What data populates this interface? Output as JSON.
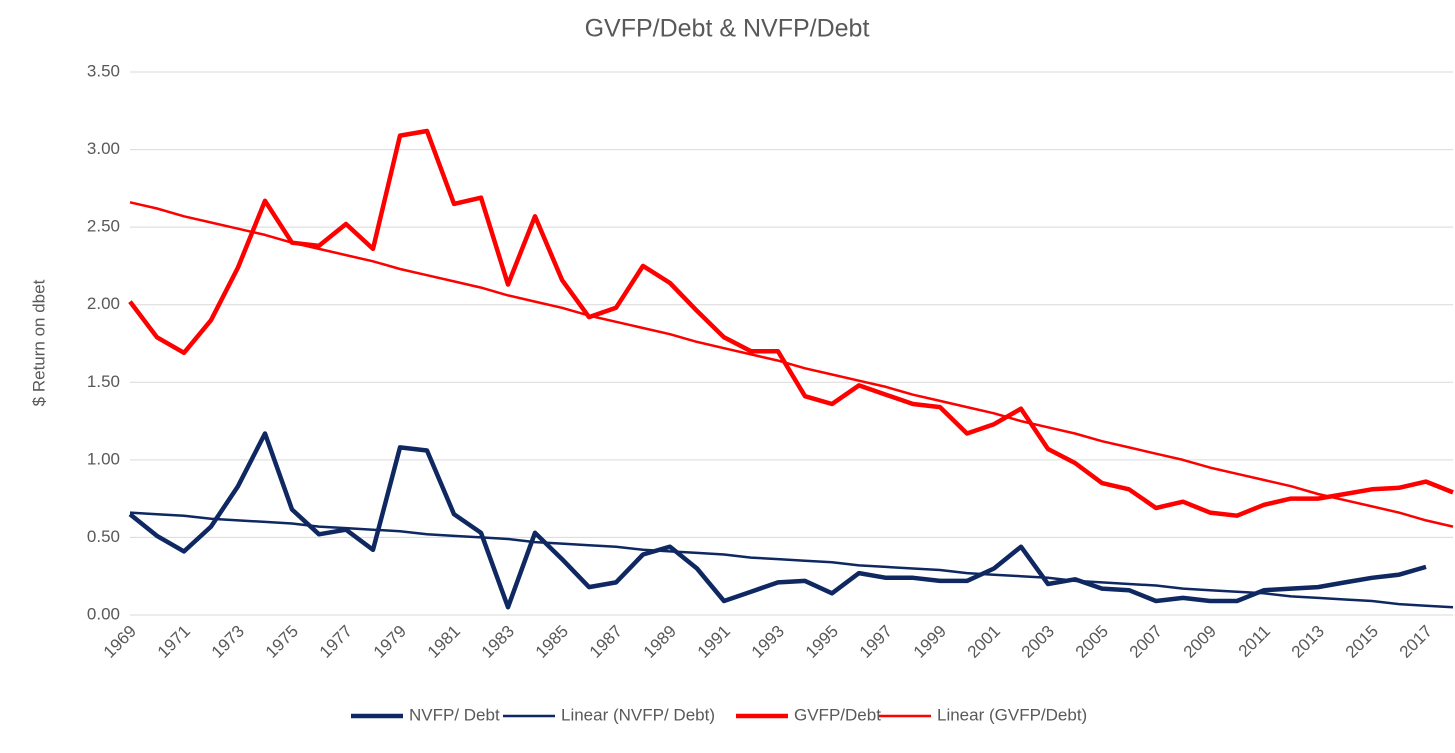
{
  "chart_data": {
    "type": "line",
    "title": "GVFP/Debt & NVFP/Debt",
    "y_label": "$ Return on dbet",
    "categories": [
      "1969",
      null,
      "1971",
      null,
      "1973",
      null,
      "1975",
      null,
      "1977",
      null,
      "1979",
      null,
      "1981",
      null,
      "1983",
      null,
      "1985",
      null,
      "1987",
      null,
      "1989",
      null,
      "1991",
      null,
      "1993",
      null,
      "1995",
      null,
      "1997",
      null,
      "1999",
      null,
      "2001",
      null,
      "2003",
      null,
      "2005",
      null,
      "2007",
      null,
      "2009",
      null,
      "2011",
      null,
      "2013",
      null,
      "2015",
      null,
      "2017",
      null
    ],
    "ylim": [
      0,
      3.5
    ],
    "yticks": [
      {
        "value": 0,
        "label": "0.00"
      },
      {
        "value": 0.5,
        "label": "0.50"
      },
      {
        "value": 1,
        "label": "1.00"
      },
      {
        "value": 1.5,
        "label": "1.50"
      },
      {
        "value": 2,
        "label": "2.00"
      },
      {
        "value": 2.5,
        "label": "2.50"
      },
      {
        "value": 3,
        "label": "3.00"
      },
      {
        "value": 3.5,
        "label": "3.50"
      }
    ],
    "grid": true,
    "legend": "bottom",
    "series": [
      {
        "name": "NVFP/ Debt",
        "color": "#0f2862",
        "line_width": 4.5,
        "values": [
          0.65,
          0.51,
          0.41,
          0.57,
          0.83,
          1.17,
          0.68,
          0.52,
          0.55,
          0.42,
          1.08,
          1.06,
          0.65,
          0.53,
          0.05,
          0.53,
          0.36,
          0.18,
          0.21,
          0.39,
          0.44,
          0.3,
          0.09,
          0.15,
          0.21,
          0.22,
          0.14,
          0.27,
          0.24,
          0.24,
          0.22,
          0.22,
          0.3,
          0.44,
          0.2,
          0.23,
          0.17,
          0.16,
          0.09,
          0.11,
          0.09,
          0.09,
          0.16,
          0.17,
          0.18,
          0.21,
          0.24,
          0.26,
          0.31,
          null
        ]
      },
      {
        "name": "Linear (NVFP/ Debt)",
        "color": "#0f2862",
        "line_width": 2.5,
        "values": [
          0.66,
          0.65,
          0.64,
          0.62,
          0.61,
          0.6,
          0.59,
          0.57,
          0.56,
          0.55,
          0.54,
          0.52,
          0.51,
          0.5,
          0.49,
          0.47,
          0.46,
          0.45,
          0.44,
          0.42,
          0.41,
          0.4,
          0.39,
          0.37,
          0.36,
          0.35,
          0.34,
          0.32,
          0.31,
          0.3,
          0.29,
          0.27,
          0.26,
          0.25,
          0.24,
          0.22,
          0.21,
          0.2,
          0.19,
          0.17,
          0.16,
          0.15,
          0.14,
          0.12,
          0.11,
          0.1,
          0.09,
          0.07,
          0.06,
          0.05
        ]
      },
      {
        "name": "GVFP/Debt",
        "color": "#ff0000",
        "line_width": 4.5,
        "values": [
          2.02,
          1.79,
          1.69,
          1.9,
          2.24,
          2.67,
          2.4,
          2.38,
          2.52,
          2.36,
          3.09,
          3.12,
          2.65,
          2.69,
          2.13,
          2.57,
          2.16,
          1.92,
          1.98,
          2.25,
          2.14,
          1.96,
          1.79,
          1.7,
          1.7,
          1.41,
          1.36,
          1.48,
          1.42,
          1.36,
          1.34,
          1.17,
          1.23,
          1.33,
          1.07,
          0.98,
          0.85,
          0.81,
          0.69,
          0.73,
          0.66,
          0.64,
          0.71,
          0.75,
          0.75,
          0.78,
          0.81,
          0.82,
          0.86,
          0.79
        ]
      },
      {
        "name": "Linear (GVFP/Debt)",
        "color": "#ff0000",
        "line_width": 2.5,
        "values": [
          2.66,
          2.62,
          2.57,
          2.53,
          2.49,
          2.45,
          2.4,
          2.36,
          2.32,
          2.28,
          2.23,
          2.19,
          2.15,
          2.11,
          2.06,
          2.02,
          1.98,
          1.93,
          1.89,
          1.85,
          1.81,
          1.76,
          1.72,
          1.68,
          1.64,
          1.59,
          1.55,
          1.51,
          1.47,
          1.42,
          1.38,
          1.34,
          1.3,
          1.25,
          1.21,
          1.17,
          1.12,
          1.08,
          1.04,
          1.0,
          0.95,
          0.91,
          0.87,
          0.83,
          0.78,
          0.74,
          0.7,
          0.66,
          0.61,
          0.57
        ]
      }
    ]
  }
}
